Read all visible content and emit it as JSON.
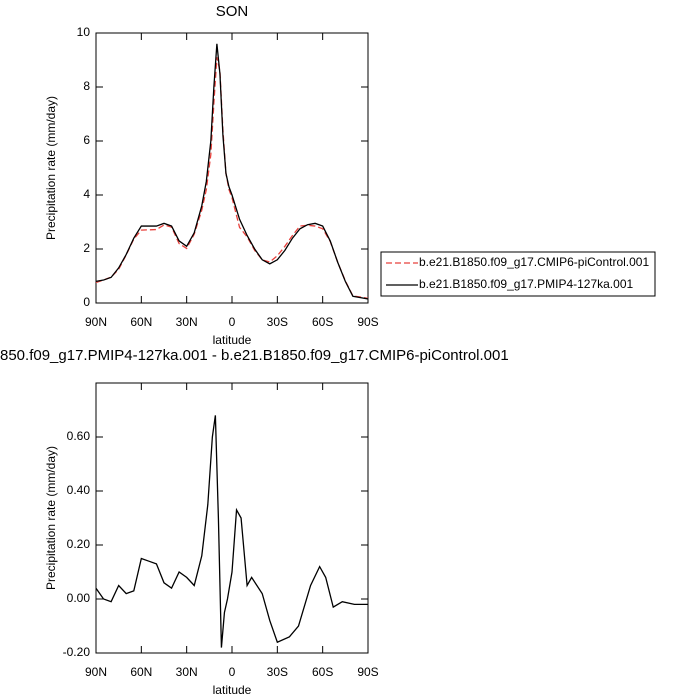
{
  "chart_data": [
    {
      "type": "line",
      "title": "SON",
      "x_label": "latitude",
      "y_label": "Precipitation rate (mm/day)",
      "x": [
        90,
        85,
        80,
        75,
        70,
        65,
        60,
        55,
        50,
        45,
        40,
        35,
        30,
        25,
        20,
        17,
        14,
        12,
        10,
        8,
        6,
        4,
        2,
        0,
        -5,
        -10,
        -15,
        -20,
        -25,
        -30,
        -35,
        -40,
        -45,
        -50,
        -55,
        -60,
        -65,
        -70,
        -75,
        -80,
        -85,
        -90
      ],
      "series": [
        {
          "name": "b.e21.B1850.f09_g17.CMIP6-piControl.001",
          "color": "#e8413c",
          "line_style": "dashed",
          "values": [
            0.76,
            0.85,
            0.96,
            1.25,
            1.78,
            2.37,
            2.7,
            2.71,
            2.72,
            2.89,
            2.81,
            2.2,
            2.02,
            2.55,
            3.44,
            4.2,
            5.5,
            7.4,
            9.1,
            8.6,
            6.4,
            4.8,
            4.2,
            3.9,
            2.8,
            2.45,
            1.95,
            1.6,
            1.52,
            1.75,
            2.1,
            2.5,
            2.85,
            2.88,
            2.85,
            2.75,
            2.28,
            1.5,
            0.82,
            0.26,
            0.22,
            0.17
          ]
        },
        {
          "name": "b.e21.B1850.f09_g17.PMIP4-127ka.001",
          "color": "#000000",
          "line_style": "solid",
          "values": [
            0.8,
            0.85,
            0.95,
            1.3,
            1.8,
            2.4,
            2.85,
            2.85,
            2.85,
            2.95,
            2.85,
            2.3,
            2.1,
            2.6,
            3.6,
            4.5,
            6.0,
            8.0,
            9.6,
            8.5,
            6.2,
            4.8,
            4.3,
            4.0,
            3.1,
            2.5,
            2.0,
            1.6,
            1.45,
            1.6,
            1.95,
            2.4,
            2.75,
            2.9,
            2.95,
            2.85,
            2.3,
            1.5,
            0.8,
            0.25,
            0.2,
            0.15
          ]
        }
      ],
      "xlim": [
        90,
        -90
      ],
      "xticks": [
        {
          "value": 90,
          "label": "90N"
        },
        {
          "value": 60,
          "label": "60N"
        },
        {
          "value": 30,
          "label": "30N"
        },
        0,
        {
          "value": -30,
          "label": "30S"
        },
        {
          "value": -60,
          "label": "60S"
        },
        {
          "value": -90,
          "label": "90S"
        }
      ],
      "ylim": [
        0,
        10
      ],
      "yticks": [
        0,
        2,
        4,
        6,
        8,
        10
      ],
      "legend": "right"
    },
    {
      "type": "line",
      "title": "850.f09_g17.PMIP4-127ka.001 - b.e21.B1850.f09_g17.CMIP6-piControl.001",
      "x_label": "latitude",
      "y_label": "Precipitation rate (mm/day)",
      "x": [
        90,
        85,
        80,
        75,
        70,
        65,
        60,
        55,
        50,
        45,
        40,
        35,
        30,
        25,
        20,
        16,
        13,
        11,
        9,
        7,
        5,
        3,
        0,
        -3,
        -6,
        -10,
        -13,
        -20,
        -25,
        -30,
        -38,
        -44,
        -52,
        -58,
        -62,
        -67,
        -73,
        -81,
        -90
      ],
      "values": [
        0.04,
        0.0,
        -0.01,
        0.05,
        0.02,
        0.03,
        0.15,
        0.14,
        0.13,
        0.06,
        0.04,
        0.1,
        0.08,
        0.05,
        0.16,
        0.35,
        0.6,
        0.68,
        0.3,
        -0.18,
        -0.05,
        0.0,
        0.1,
        0.33,
        0.3,
        0.05,
        0.08,
        0.02,
        -0.08,
        -0.16,
        -0.14,
        -0.1,
        0.05,
        0.12,
        0.08,
        -0.03,
        -0.01,
        -0.02,
        -0.02
      ],
      "color": "#000000",
      "xlim": [
        90,
        -90
      ],
      "xticks": [
        {
          "value": 90,
          "label": "90N"
        },
        {
          "value": 60,
          "label": "60N"
        },
        {
          "value": 30,
          "label": "30N"
        },
        0,
        {
          "value": -30,
          "label": "30S"
        },
        {
          "value": -60,
          "label": "60S"
        },
        {
          "value": -90,
          "label": "90S"
        }
      ],
      "ylim": [
        -0.2,
        0.8
      ],
      "yticks": [
        {
          "value": -0.2,
          "label": "-0.20"
        },
        {
          "value": 0,
          "label": "0.00"
        },
        {
          "value": 0.2,
          "label": "0.20"
        },
        {
          "value": 0.4,
          "label": "0.40"
        },
        {
          "value": 0.6,
          "label": "0.60"
        }
      ]
    }
  ]
}
